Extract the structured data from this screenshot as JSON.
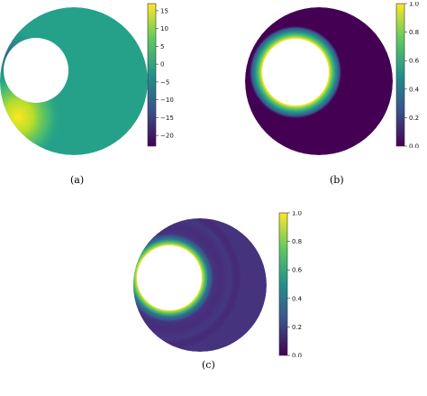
{
  "figure": {
    "panels": [
      {
        "caption": "(a)",
        "colorbar": {
          "ticks": [
            "15",
            "10",
            "5",
            "0",
            "−5",
            "−10",
            "−15",
            "−20"
          ],
          "min": -23,
          "max": 17,
          "tick_values": [
            15,
            10,
            5,
            0,
            -5,
            -10,
            -15,
            -20
          ]
        }
      },
      {
        "caption": "(b)",
        "colorbar": {
          "ticks": [
            "1.0",
            "0.8",
            "0.6",
            "0.4",
            "0.2",
            "0.0"
          ],
          "min": 0,
          "max": 1,
          "tick_values": [
            1.0,
            0.8,
            0.6,
            0.4,
            0.2,
            0.0
          ]
        }
      },
      {
        "caption": "(c)",
        "colorbar": {
          "ticks": [
            "1.0",
            "0.8",
            "0.6",
            "0.4",
            "0.2",
            "0.0"
          ],
          "min": 0,
          "max": 1,
          "tick_values": [
            1.0,
            0.8,
            0.6,
            0.4,
            0.2,
            0.0
          ]
        }
      }
    ]
  },
  "colormap": {
    "name": "viridis",
    "stops": [
      "#440154",
      "#3b528b",
      "#21918c",
      "#5ec962",
      "#fde725"
    ]
  }
}
